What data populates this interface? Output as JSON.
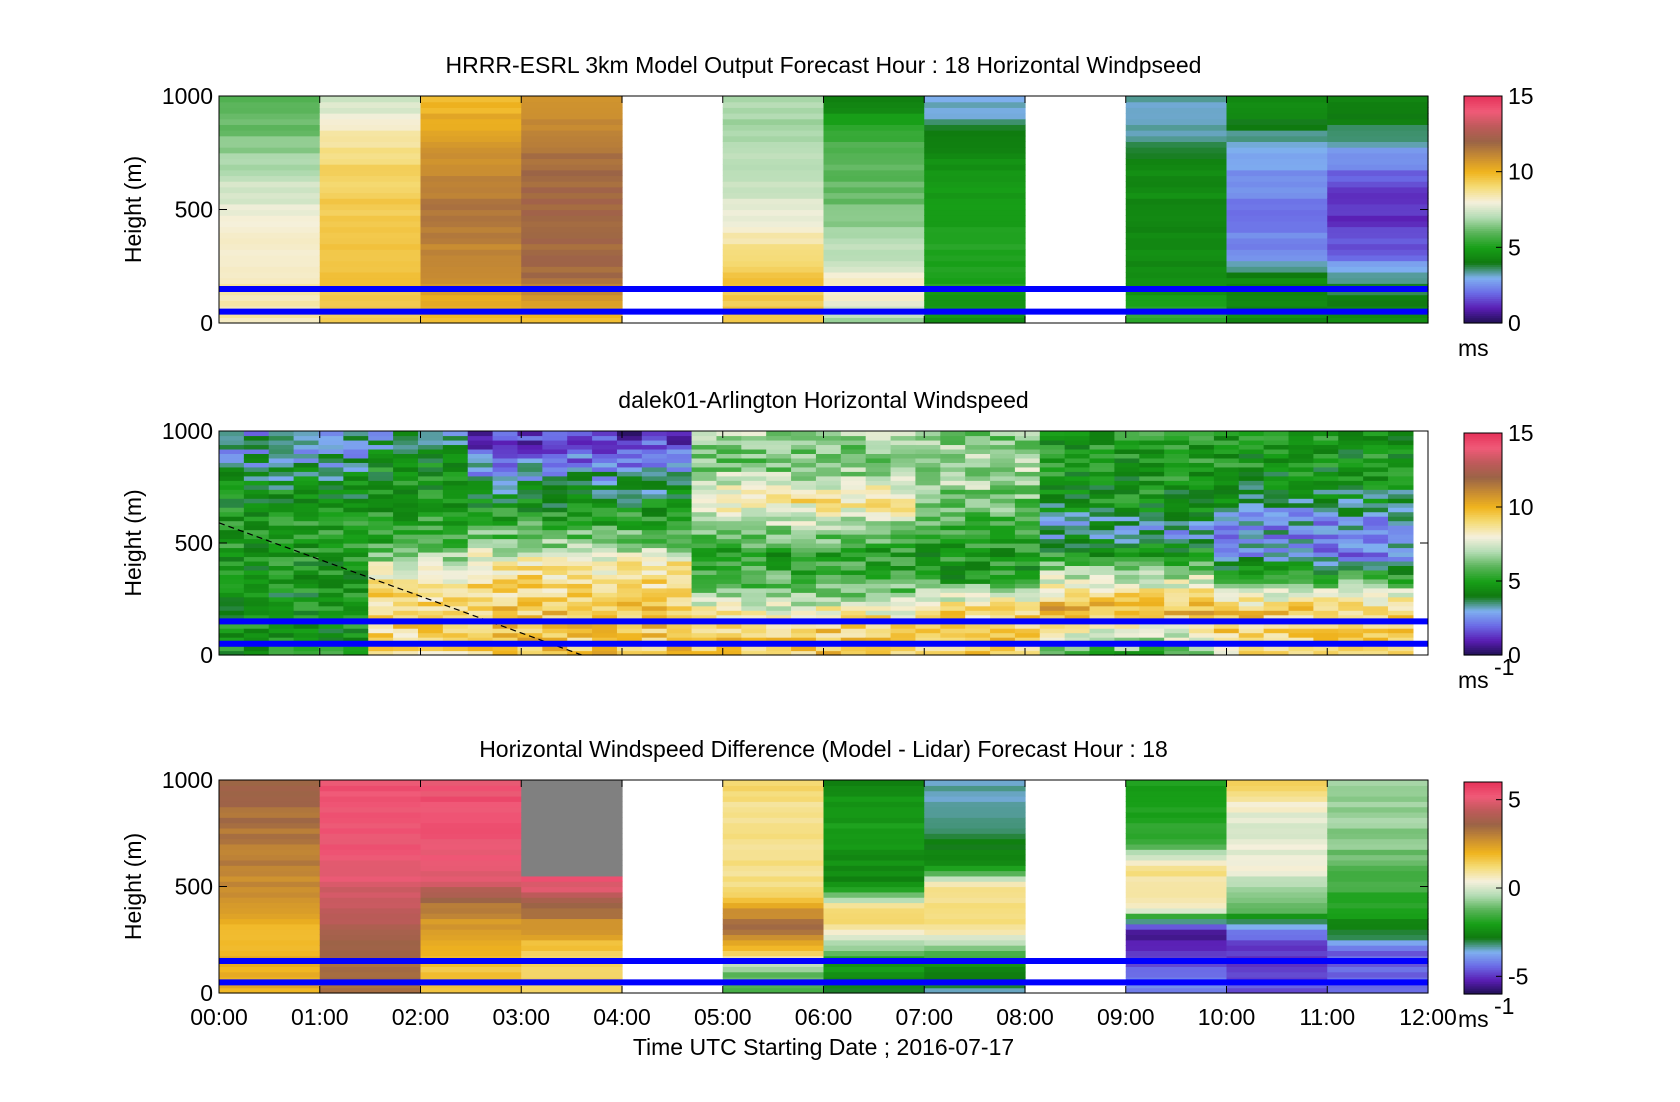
{
  "colors": {
    "boundary_lines": "#0000ff",
    "background": "#ffffff",
    "colormap_speed": [
      "#1e0f50",
      "#5a1eb4",
      "#6b6be6",
      "#7fb0f0",
      "#0f7a0f",
      "#18a018",
      "#5ab45a",
      "#b4dcb4",
      "#f5f0dc",
      "#f5dc78",
      "#f0b41e",
      "#c88c32",
      "#9b6446",
      "#be5a5a",
      "#f05a78",
      "#e6325a"
    ],
    "colormap_diff": [
      "#1e0f50",
      "#5a1eb4",
      "#6b6be6",
      "#7fb0f0",
      "#0f7a0f",
      "#18a018",
      "#5ab45a",
      "#b4dcb4",
      "#f5f0dc",
      "#f5dc78",
      "#f0b41e",
      "#c88c32",
      "#9b6446",
      "#be5a5a",
      "#f05a78",
      "#e6325a"
    ]
  },
  "chart_data": [
    {
      "type": "heatmap",
      "title": "HRRR-ESRL 3km Model Output   Forecast Hour : 18 Horizontal Windpseed",
      "ylabel": "Height (m)",
      "xlabel": "",
      "ylim": [
        0,
        1000
      ],
      "yticks": [
        "0",
        "500",
        "1000"
      ],
      "colorbar": {
        "ticks": [
          "0",
          "5",
          "10",
          "15"
        ],
        "range": [
          0,
          15
        ],
        "unit": "ms"
      },
      "x_hours": [
        0,
        1,
        2,
        3,
        4,
        5,
        6,
        7,
        8,
        9,
        10,
        11
      ],
      "hline_heights_m": [
        150,
        50
      ],
      "columns": [
        {
          "hour": 0,
          "profile": [
            [
              0,
              8.5
            ],
            [
              100,
              8.5
            ],
            [
              300,
              8.3
            ],
            [
              500,
              7.8
            ],
            [
              650,
              7.2
            ],
            [
              800,
              6.5
            ],
            [
              950,
              5.8
            ],
            [
              1000,
              5.8
            ]
          ]
        },
        {
          "hour": 1,
          "profile": [
            [
              0,
              9.5
            ],
            [
              200,
              9.6
            ],
            [
              500,
              9.5
            ],
            [
              700,
              9.2
            ],
            [
              850,
              8.5
            ],
            [
              950,
              7.5
            ],
            [
              1000,
              7.5
            ]
          ]
        },
        {
          "hour": 2,
          "profile": [
            [
              0,
              9.5
            ],
            [
              200,
              11
            ],
            [
              500,
              11.5
            ],
            [
              700,
              11
            ],
            [
              850,
              10.4
            ],
            [
              950,
              10
            ],
            [
              1000,
              10
            ]
          ]
        },
        {
          "hour": 3,
          "profile": [
            [
              0,
              9.5
            ],
            [
              200,
              11.8
            ],
            [
              500,
              12
            ],
            [
              700,
              11.8
            ],
            [
              900,
              11
            ],
            [
              1000,
              10.5
            ]
          ]
        },
        {
          "hour": 4,
          "profile": null
        },
        {
          "hour": 5,
          "profile": [
            [
              0,
              9.5
            ],
            [
              200,
              9.5
            ],
            [
              400,
              8.3
            ],
            [
              600,
              7.2
            ],
            [
              800,
              7.0
            ],
            [
              1000,
              6.8
            ]
          ]
        },
        {
          "hour": 6,
          "profile": [
            [
              0,
              6.5
            ],
            [
              150,
              8.5
            ],
            [
              300,
              7.2
            ],
            [
              500,
              6.3
            ],
            [
              700,
              6.0
            ],
            [
              850,
              5.6
            ],
            [
              950,
              4.4
            ],
            [
              1000,
              4.4
            ]
          ]
        },
        {
          "hour": 7,
          "profile": [
            [
              0,
              4.5
            ],
            [
              200,
              5.2
            ],
            [
              500,
              5.0
            ],
            [
              700,
              4.6
            ],
            [
              850,
              4.2
            ],
            [
              920,
              3.2
            ],
            [
              1000,
              3.0
            ]
          ]
        },
        {
          "hour": 8,
          "profile": null
        },
        {
          "hour": 9,
          "profile": [
            [
              0,
              5.5
            ],
            [
              150,
              4.6
            ],
            [
              400,
              4.4
            ],
            [
              700,
              4.4
            ],
            [
              800,
              3.6
            ],
            [
              900,
              3.2
            ],
            [
              1000,
              3.3
            ]
          ]
        },
        {
          "hour": 10,
          "profile": [
            [
              0,
              4.5
            ],
            [
              200,
              4.4
            ],
            [
              300,
              2.5
            ],
            [
              500,
              2.2
            ],
            [
              650,
              2.5
            ],
            [
              800,
              3.2
            ],
            [
              900,
              4.2
            ],
            [
              1000,
              4.3
            ]
          ]
        },
        {
          "hour": 11,
          "profile": [
            [
              0,
              4.5
            ],
            [
              200,
              3.5
            ],
            [
              300,
              2.0
            ],
            [
              450,
              1.2
            ],
            [
              600,
              1.5
            ],
            [
              800,
              3.2
            ],
            [
              900,
              4.2
            ],
            [
              1000,
              4.3
            ]
          ]
        }
      ]
    },
    {
      "type": "heatmap",
      "title": "dalek01-Arlington  Horizontal Windspeed",
      "ylabel": "Height (m)",
      "xlabel": "",
      "ylim": [
        0,
        1000
      ],
      "yticks": [
        "0",
        "500",
        "1000"
      ],
      "colorbar": {
        "ticks": [
          "0",
          "5",
          "10",
          "15"
        ],
        "range": [
          0,
          15
        ],
        "unit": "ms",
        "unit_superscript": "-1"
      },
      "x_hours_range": [
        0,
        12
      ],
      "time_columns": 48,
      "data_end_hour": 11.85,
      "hline_heights_m": [
        150,
        50
      ],
      "dashed_line": [
        [
          0.0,
          590
        ],
        [
          3.6,
          0
        ]
      ],
      "segments": [
        {
          "from": 0.0,
          "to": 1.5,
          "profile": [
            [
              0,
              5.0
            ],
            [
              200,
              4.6
            ],
            [
              400,
              4.8
            ],
            [
              600,
              5.2
            ],
            [
              750,
              4.3
            ],
            [
              850,
              3.5
            ],
            [
              950,
              3.0
            ],
            [
              1000,
              2.8
            ]
          ]
        },
        {
          "from": 1.5,
          "to": 2.5,
          "profile": [
            [
              0,
              8.6
            ],
            [
              200,
              9.4
            ],
            [
              350,
              8.3
            ],
            [
              500,
              5.6
            ],
            [
              700,
              5.0
            ],
            [
              850,
              4.6
            ],
            [
              950,
              3.5
            ],
            [
              1000,
              3.2
            ]
          ]
        },
        {
          "from": 2.5,
          "to": 4.8,
          "profile": [
            [
              0,
              9.5
            ],
            [
              200,
              9.5
            ],
            [
              400,
              8.6
            ],
            [
              500,
              6.5
            ],
            [
              650,
              4.8
            ],
            [
              800,
              3.2
            ],
            [
              900,
              2.0
            ],
            [
              1000,
              1.2
            ]
          ]
        },
        {
          "from": 4.8,
          "to": 7.0,
          "profile": [
            [
              0,
              9.5
            ],
            [
              150,
              9.2
            ],
            [
              300,
              6.0
            ],
            [
              450,
              5.0
            ],
            [
              550,
              6.5
            ],
            [
              700,
              8.8
            ],
            [
              850,
              6.2
            ],
            [
              950,
              6.5
            ],
            [
              1000,
              7.0
            ]
          ]
        },
        {
          "from": 7.0,
          "to": 8.2,
          "profile": [
            [
              0,
              9.5
            ],
            [
              200,
              9.0
            ],
            [
              350,
              5.0
            ],
            [
              500,
              5.0
            ],
            [
              650,
              6.0
            ],
            [
              800,
              7.0
            ],
            [
              950,
              6.5
            ],
            [
              1000,
              6.5
            ]
          ]
        },
        {
          "from": 8.2,
          "to": 9.8,
          "profile": [
            [
              0,
              5.5
            ],
            [
              200,
              10.2
            ],
            [
              350,
              7.2
            ],
            [
              450,
              5.0
            ],
            [
              550,
              3.2
            ],
            [
              700,
              4.6
            ],
            [
              850,
              5.0
            ],
            [
              1000,
              5.0
            ]
          ]
        },
        {
          "from": 9.8,
          "to": 11.85,
          "profile": [
            [
              0,
              8.8
            ],
            [
              200,
              9.4
            ],
            [
              350,
              5.5
            ],
            [
              450,
              2.5
            ],
            [
              600,
              2.8
            ],
            [
              700,
              4.0
            ],
            [
              850,
              4.8
            ],
            [
              1000,
              4.8
            ]
          ]
        }
      ]
    },
    {
      "type": "heatmap",
      "title": "Horizontal Windspeed Difference (Model - Lidar) Forecast Hour : 18",
      "ylabel": "Height (m)",
      "xlabel": "Time UTC  Starting Date ; 2016-07-17",
      "ylim": [
        0,
        1000
      ],
      "yticks": [
        "0",
        "500",
        "1000"
      ],
      "xticks": [
        "00:00",
        "01:00",
        "02:00",
        "03:00",
        "04:00",
        "05:00",
        "06:00",
        "07:00",
        "08:00",
        "09:00",
        "10:00",
        "11:00",
        "12:00"
      ],
      "colorbar": {
        "ticks": [
          "-5",
          "0",
          "5"
        ],
        "range": [
          -6,
          6
        ],
        "unit": "ms",
        "unit_superscript": "-1"
      },
      "hline_heights_m": [
        150,
        50
      ],
      "columns": [
        {
          "hour": 0,
          "profile": [
            [
              0,
              2.2
            ],
            [
              300,
              2.0
            ],
            [
              500,
              2.8
            ],
            [
              700,
              3.2
            ],
            [
              900,
              3.5
            ],
            [
              1000,
              3.5
            ]
          ]
        },
        {
          "hour": 1,
          "profile": [
            [
              0,
              3.5
            ],
            [
              200,
              3.5
            ],
            [
              400,
              4.5
            ],
            [
              600,
              5.2
            ],
            [
              800,
              5.4
            ],
            [
              1000,
              5.3
            ]
          ]
        },
        {
          "hour": 2,
          "profile": [
            [
              0,
              1.5
            ],
            [
              200,
              2.0
            ],
            [
              400,
              3.0
            ],
            [
              550,
              5.0
            ],
            [
              800,
              5.4
            ],
            [
              1000,
              5.3
            ]
          ]
        },
        {
          "hour": 3,
          "profile": [
            [
              0,
              1.2
            ],
            [
              200,
              1.5
            ],
            [
              400,
              3.5
            ],
            [
              500,
              5.0
            ],
            [
              540,
              5.2
            ]
          ],
          "gray_above_m": 545
        },
        {
          "hour": 4,
          "profile": null
        },
        {
          "hour": 5,
          "profile": [
            [
              0,
              -1.5
            ],
            [
              100,
              -1.0
            ],
            [
              200,
              1.5
            ],
            [
              300,
              3.5
            ],
            [
              400,
              2.5
            ],
            [
              500,
              1.0
            ],
            [
              700,
              1.0
            ],
            [
              1000,
              1.2
            ]
          ]
        },
        {
          "hour": 6,
          "profile": [
            [
              0,
              -3.0
            ],
            [
              150,
              -2.0
            ],
            [
              300,
              1.0
            ],
            [
              400,
              1.2
            ],
            [
              500,
              -2.5
            ],
            [
              700,
              -2.2
            ],
            [
              850,
              -2.0
            ],
            [
              1000,
              -2.5
            ]
          ]
        },
        {
          "hour": 7,
          "profile": [
            [
              0,
              -3.5
            ],
            [
              150,
              -2.0
            ],
            [
              300,
              1.0
            ],
            [
              500,
              1.2
            ],
            [
              600,
              -2.5
            ],
            [
              800,
              -3.0
            ],
            [
              1000,
              -3.5
            ]
          ]
        },
        {
          "hour": 8,
          "profile": null
        },
        {
          "hour": 9,
          "profile": [
            [
              0,
              -4.0
            ],
            [
              200,
              -5.0
            ],
            [
              300,
              -5.5
            ],
            [
              400,
              0.8
            ],
            [
              600,
              1.0
            ],
            [
              700,
              -1.5
            ],
            [
              900,
              -2.0
            ],
            [
              1000,
              -2.0
            ]
          ]
        },
        {
          "hour": 10,
          "profile": [
            [
              0,
              -4.5
            ],
            [
              200,
              -5.0
            ],
            [
              300,
              -4.0
            ],
            [
              400,
              -1.0
            ],
            [
              600,
              0.3
            ],
            [
              800,
              0.0
            ],
            [
              950,
              1.0
            ],
            [
              1000,
              1.5
            ]
          ]
        },
        {
          "hour": 11,
          "profile": [
            [
              0,
              -4.5
            ],
            [
              200,
              -4.5
            ],
            [
              300,
              -2.5
            ],
            [
              500,
              -1.5
            ],
            [
              700,
              -0.8
            ],
            [
              1000,
              -0.5
            ]
          ]
        }
      ]
    }
  ]
}
